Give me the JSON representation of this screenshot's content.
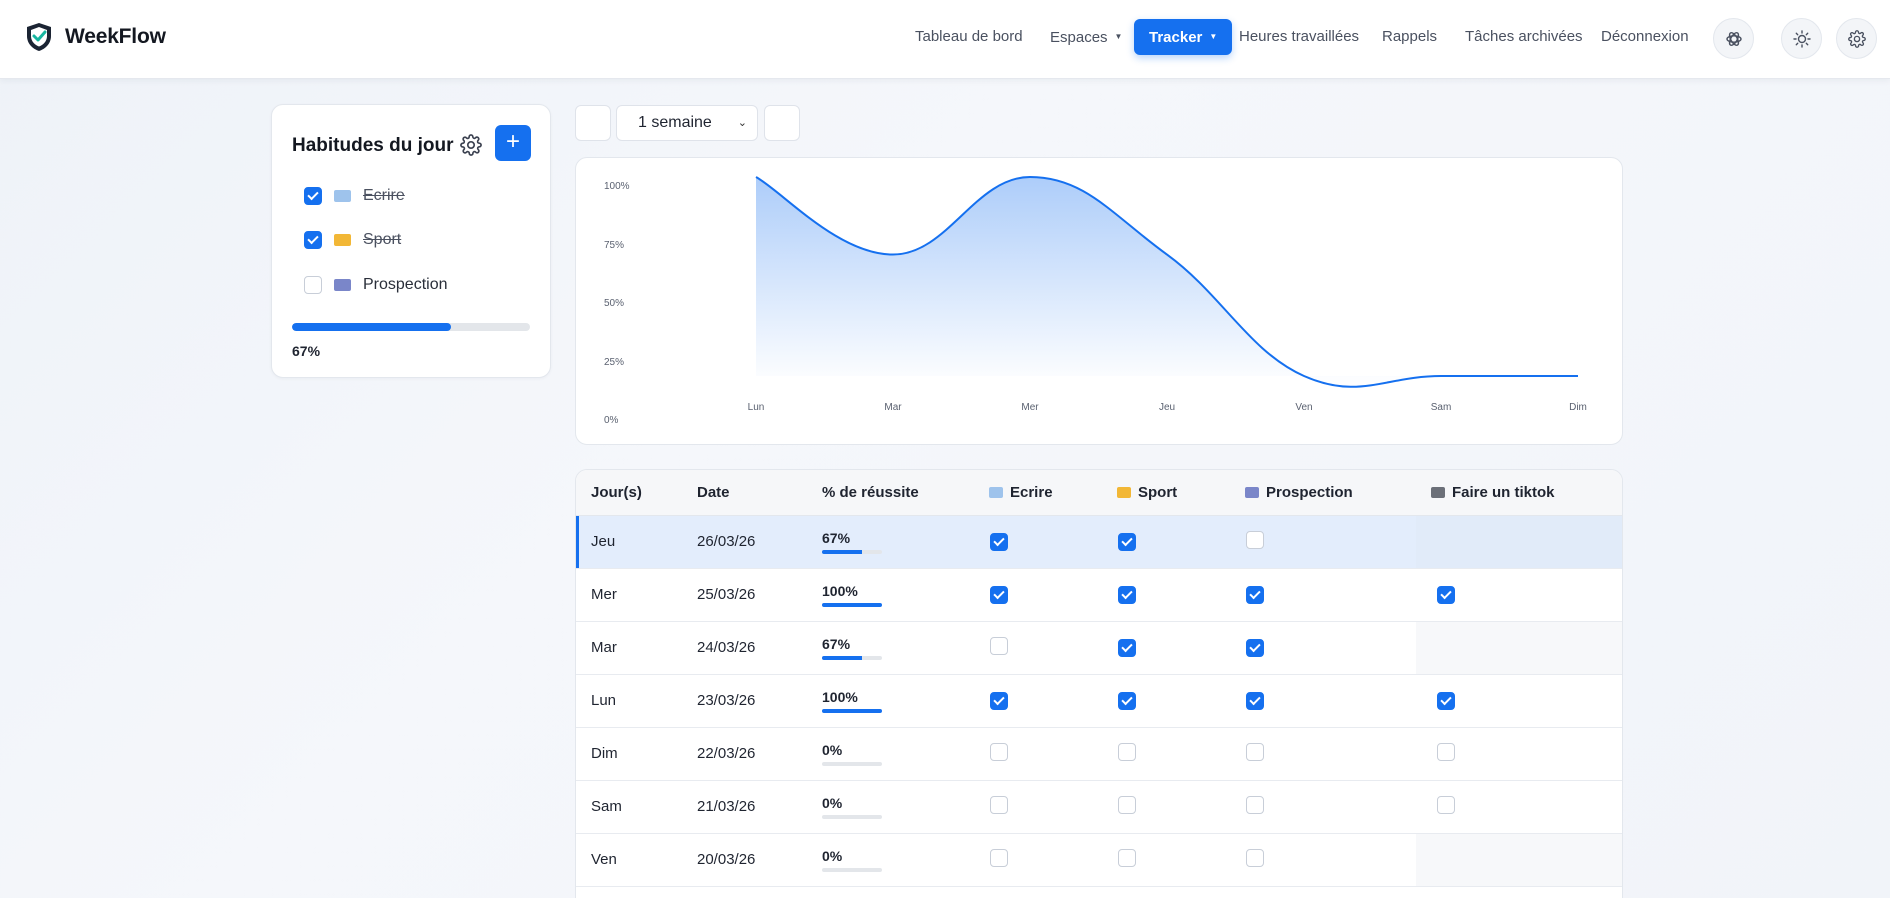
{
  "app": {
    "name": "WeekFlow"
  },
  "nav": {
    "items": [
      {
        "label": "Tableau de bord",
        "has_caret": false,
        "active": false
      },
      {
        "label": "Espaces",
        "has_caret": true,
        "active": false
      },
      {
        "label": "Tracker",
        "has_caret": true,
        "active": true
      },
      {
        "label": "Heures travaillées",
        "has_caret": false,
        "active": false
      },
      {
        "label": "Rappels",
        "has_caret": false,
        "active": false
      },
      {
        "label": "Tâches archivées",
        "has_caret": false,
        "active": false
      },
      {
        "label": "Déconnexion",
        "has_caret": false,
        "active": false
      }
    ],
    "icon_buttons": [
      "ai-icon",
      "sun-icon",
      "settings-icon"
    ]
  },
  "habits": {
    "title": "Habitudes du jour",
    "items": [
      {
        "emoji": "book-icon",
        "label": "Ecrire",
        "checked": true
      },
      {
        "emoji": "flexed-biceps-icon",
        "label": "Sport",
        "checked": true
      },
      {
        "emoji": "target-icon",
        "label": "Prospection",
        "checked": false
      }
    ],
    "progress": 0.67,
    "progress_text": "67%"
  },
  "toolbar": {
    "period": "1 semaine"
  },
  "chart_data": {
    "type": "area",
    "categories": [
      "Lun",
      "Mar",
      "Mer",
      "Jeu",
      "Ven",
      "Sam",
      "Dim"
    ],
    "values": [
      100,
      67,
      100,
      67,
      0,
      0,
      0
    ],
    "y_ticks": [
      "100%",
      "75%",
      "50%",
      "25%",
      "0%"
    ],
    "ylim": [
      0,
      100
    ],
    "color": "#1570ef",
    "grid": false
  },
  "table": {
    "columns": [
      {
        "label": "Jour(s)",
        "emoji": null
      },
      {
        "label": "Date",
        "emoji": null
      },
      {
        "label": "% de réussite",
        "emoji": null
      },
      {
        "label": "Ecrire",
        "emoji": "book-icon"
      },
      {
        "label": "Sport",
        "emoji": "flexed-biceps-icon"
      },
      {
        "label": "Prospection",
        "emoji": "target-icon"
      },
      {
        "label": "Faire un tiktok",
        "emoji": "telephone-icon"
      }
    ],
    "rows": [
      {
        "day": "Jeu",
        "date": "26/03/26",
        "rate": "67%",
        "rate_value": 0.67,
        "highlight": true,
        "checks": [
          true,
          true,
          false,
          null
        ]
      },
      {
        "day": "Mer",
        "date": "25/03/26",
        "rate": "100%",
        "rate_value": 1.0,
        "highlight": false,
        "checks": [
          true,
          true,
          true,
          true
        ]
      },
      {
        "day": "Mar",
        "date": "24/03/26",
        "rate": "67%",
        "rate_value": 0.67,
        "highlight": false,
        "checks": [
          false,
          true,
          true,
          null
        ]
      },
      {
        "day": "Lun",
        "date": "23/03/26",
        "rate": "100%",
        "rate_value": 1.0,
        "highlight": false,
        "checks": [
          true,
          true,
          true,
          true
        ]
      },
      {
        "day": "Dim",
        "date": "22/03/26",
        "rate": "0%",
        "rate_value": 0,
        "highlight": false,
        "checks": [
          false,
          false,
          false,
          false
        ]
      },
      {
        "day": "Sam",
        "date": "21/03/26",
        "rate": "0%",
        "rate_value": 0,
        "highlight": false,
        "checks": [
          false,
          false,
          false,
          false
        ]
      },
      {
        "day": "Ven",
        "date": "20/03/26",
        "rate": "0%",
        "rate_value": 0,
        "highlight": false,
        "checks": [
          false,
          false,
          false,
          null
        ]
      }
    ]
  }
}
